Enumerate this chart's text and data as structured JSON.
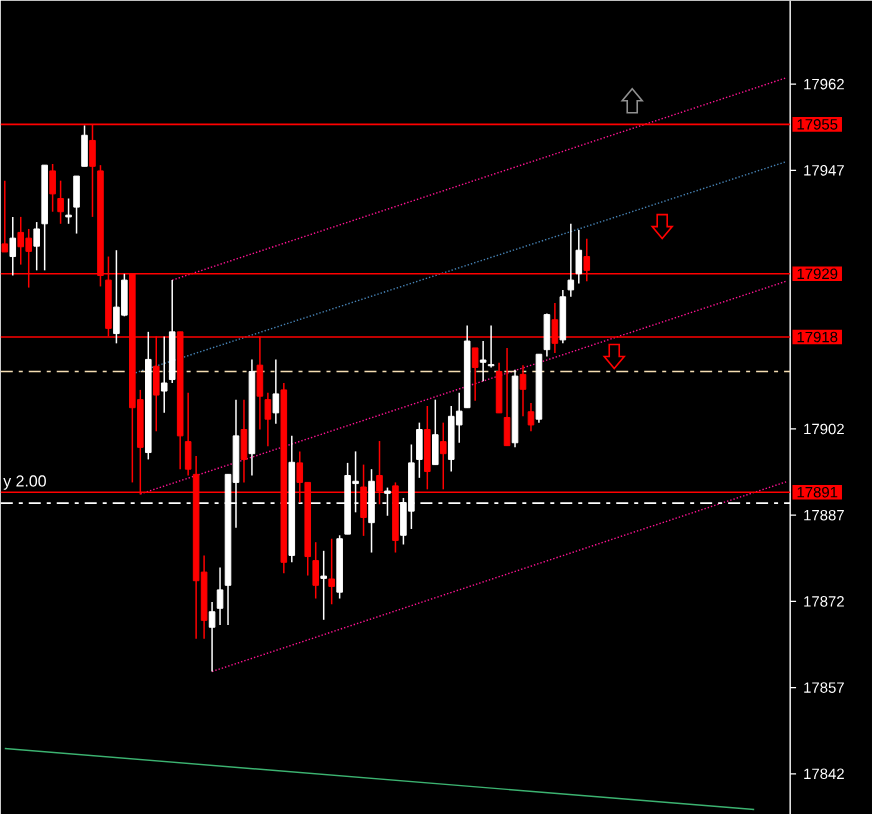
{
  "chart_data": {
    "type": "candlestick",
    "categories": [
      null,
      null,
      null,
      null,
      null,
      null,
      null,
      null,
      null,
      null,
      null,
      null,
      null,
      null,
      null,
      null,
      null,
      null,
      null,
      null,
      null,
      null,
      null,
      null,
      null,
      null,
      null,
      null,
      null,
      null,
      null,
      null,
      null,
      null,
      null,
      null,
      null,
      null,
      null,
      null,
      null,
      null,
      null,
      null,
      null,
      null,
      null,
      null,
      null,
      null,
      null,
      null,
      null,
      null,
      null,
      null,
      null,
      null,
      null,
      null,
      null,
      null,
      null,
      null,
      null,
      null,
      null,
      null,
      null,
      null,
      null,
      null,
      null,
      null,
      null,
      null,
      null,
      null,
      null,
      null,
      null,
      null,
      null,
      null,
      null,
      null,
      null,
      null,
      null,
      null,
      null,
      null,
      null,
      null,
      null,
      null,
      null,
      null,
      null
    ],
    "ohlc": [
      [
        17934.2,
        17945.2,
        17932.8,
        17932.8
      ],
      [
        17932,
        17938.9,
        17928.7,
        17935.2
      ],
      [
        17936.2,
        17938.9,
        17930.6,
        17933.7
      ],
      [
        17935.2,
        17936.8,
        17926.6,
        17932.9
      ],
      [
        17933.8,
        17938,
        17929.6,
        17936.8
      ],
      [
        17937.7,
        17947.9,
        17929.6,
        17947.9
      ],
      [
        17946.9,
        17948.1,
        17939.8,
        17942.9
      ],
      [
        17942.1,
        17945.2,
        17937.7,
        17939.8
      ],
      [
        17938.9,
        17942.1,
        17937.7,
        17939.2
      ],
      [
        17940.6,
        17946,
        17936,
        17946
      ],
      [
        17947.7,
        17954.8,
        17947.7,
        17953.1
      ],
      [
        17952.2,
        17955,
        17938.9,
        17947.7
      ],
      [
        17946.9,
        17947.9,
        17926.8,
        17928.7
      ],
      [
        17927.9,
        17932,
        17918.1,
        17919.5
      ],
      [
        17918.6,
        17933.1,
        17916.9,
        17923.2
      ],
      [
        17921.8,
        17929,
        17921.6,
        17927.9
      ],
      [
        17929,
        17929,
        17892.7,
        17905.7
      ],
      [
        17907.1,
        17908.8,
        17890.6,
        17898.8
      ],
      [
        17897.9,
        17918.9,
        17896.7,
        17914.1
      ],
      [
        17912.9,
        17918.1,
        17901.6,
        17907.9
      ],
      [
        17908.6,
        17918.1,
        17904.8,
        17910
      ],
      [
        17910.6,
        17927.9,
        17910,
        17918.9
      ],
      [
        17918.9,
        17918.9,
        17895,
        17900.8
      ],
      [
        17899.8,
        17908.3,
        17893.9,
        17895
      ],
      [
        17894.1,
        17897.3,
        17865.5,
        17875.6
      ],
      [
        17877.1,
        17880,
        17865.5,
        17868.7
      ],
      [
        17867.5,
        17871.9,
        17859.8,
        17870.2
      ],
      [
        17870.8,
        17877.9,
        17867.9,
        17874
      ],
      [
        17874.8,
        17894.1,
        17867.9,
        17894.1
      ],
      [
        17892.7,
        17907.1,
        17884.8,
        17900.8
      ],
      [
        17901.9,
        17907.1,
        17892.7,
        17896.7
      ],
      [
        17897.7,
        17914.1,
        17893.9,
        17912
      ],
      [
        17913.1,
        17918.1,
        17901.9,
        17907.7
      ],
      [
        17907.1,
        17908.3,
        17899,
        17903.7
      ],
      [
        17904.8,
        17914.1,
        17902.9,
        17908.1
      ],
      [
        17908.8,
        17910,
        17876.9,
        17878.8
      ],
      [
        17880,
        17900.8,
        17878.8,
        17896.2
      ],
      [
        17896.1,
        17898.1,
        17889.2,
        17892.7
      ],
      [
        17892.7,
        17892.7,
        17876.5,
        17879.8
      ],
      [
        17879.1,
        17882.3,
        17872.5,
        17874.8
      ],
      [
        17876,
        17880.8,
        17868.8,
        17876.4
      ],
      [
        17875.9,
        17882.9,
        17871.5,
        17874.6
      ],
      [
        17873.6,
        17883.5,
        17872.5,
        17882.9
      ],
      [
        17883.7,
        17896.1,
        17883.7,
        17893.9
      ],
      [
        17892.5,
        17898.1,
        17887.5,
        17892.9
      ],
      [
        17891.9,
        17895.8,
        17883.4,
        17886.6
      ],
      [
        17885.7,
        17895,
        17880.5,
        17892.9
      ],
      [
        17893.9,
        17899.9,
        17888.9,
        17891.2
      ],
      [
        17890.8,
        17891.8,
        17886.9,
        17891.2
      ],
      [
        17892.1,
        17892.7,
        17880.5,
        17882.6
      ],
      [
        17883.5,
        17890,
        17881.9,
        17889.2
      ],
      [
        17887.7,
        17899.3,
        17884.6,
        17896.1
      ],
      [
        17896.7,
        17903.1,
        17893.5,
        17901.9
      ],
      [
        17901.9,
        17906,
        17891.5,
        17894.6
      ],
      [
        17895.8,
        17907.1,
        17895.8,
        17901
      ],
      [
        17899.8,
        17903.1,
        17891.5,
        17897.7
      ],
      [
        17896.7,
        17906,
        17894.6,
        17904.2
      ],
      [
        17902.7,
        17908.3,
        17899.6,
        17905.1
      ],
      [
        17905.7,
        17920,
        17905.7,
        17917.3
      ],
      [
        17916.1,
        17916.1,
        17906.9,
        17912.7
      ],
      [
        17913.6,
        17917.3,
        17910.3,
        17914
      ],
      [
        17913,
        17920,
        17912.7,
        17913.2
      ],
      [
        17912,
        17913.5,
        17904.8,
        17904.8
      ],
      [
        17904,
        17916.1,
        17899.1,
        17899.1
      ],
      [
        17899.6,
        17912.3,
        17898.8,
        17911.2
      ],
      [
        17911.5,
        17913.1,
        17904.2,
        17908.9
      ],
      [
        17905,
        17906.5,
        17901.6,
        17902.7
      ],
      [
        17903.7,
        17915,
        17903.1,
        17915
      ],
      [
        17915.8,
        17922.1,
        17914.6,
        17921.9
      ],
      [
        17921,
        17923.9,
        17915.2,
        17916.9
      ],
      [
        17917.5,
        17926.2,
        17916.9,
        17925
      ],
      [
        17926.2,
        17937.7,
        17925,
        17927.9
      ],
      [
        17929,
        17936.6,
        17927.3,
        17933.1
      ],
      [
        17932,
        17935.1,
        17927.7,
        17929.6
      ],
      null,
      null,
      null,
      null,
      null,
      null,
      null,
      null,
      null,
      null,
      null,
      null,
      null,
      null,
      null,
      null,
      null,
      null,
      null,
      null,
      null,
      null,
      null,
      null,
      null
    ],
    "colors": [
      "#ff0000",
      "#ffffff",
      "#ff0000",
      "#ff0000",
      "#ffffff",
      "#ffffff",
      "#ff0000",
      "#ff0000",
      "#ffffff",
      "#ffffff",
      "#ffffff",
      "#ff0000",
      "#ff0000",
      "#ff0000",
      "#ffffff",
      "#ffffff",
      "#ff0000",
      "#ff0000",
      "#ffffff",
      "#ff0000",
      "#ffffff",
      "#ffffff",
      "#ff0000",
      "#ff0000",
      "#ff0000",
      "#ff0000",
      "#ffffff",
      "#ffffff",
      "#ffffff",
      "#ffffff",
      "#ff0000",
      "#ffffff",
      "#ff0000",
      "#ff0000",
      "#ffffff",
      "#ff0000",
      "#ffffff",
      "#ff0000",
      "#ff0000",
      "#ff0000",
      "#ffffff",
      "#ff0000",
      "#ffffff",
      "#ffffff",
      "#ffffff",
      "#ff0000",
      "#ffffff",
      "#ff0000",
      "#ffffff",
      "#ff0000",
      "#ffffff",
      "#ffffff",
      "#ffffff",
      "#ff0000",
      "#ffffff",
      "#ff0000",
      "#ffffff",
      "#ffffff",
      "#ffffff",
      "#ff0000",
      "#ffffff",
      "#ffffff",
      "#ff0000",
      "#ff0000",
      "#ffffff",
      "#ff0000",
      "#ff0000",
      "#ffffff",
      "#ffffff",
      "#ff0000",
      "#ffffff",
      "#ffffff",
      "#ffffff",
      "#ff0000",
      null,
      null,
      null,
      null,
      null,
      null,
      null,
      null,
      null,
      null,
      null,
      null,
      null,
      null,
      null,
      null,
      null,
      null,
      null,
      null,
      null,
      null,
      null,
      null,
      null
    ],
    "series": [
      {
        "type": "line",
        "color": "#ff1493",
        "line_style": "dotted",
        "values": [
          null,
          null,
          null,
          null,
          null,
          null,
          null,
          null,
          null,
          null,
          null,
          null,
          null,
          null,
          null,
          null,
          null,
          null,
          null,
          null,
          null,
          17927.9,
          null,
          null,
          null,
          null,
          null,
          null,
          null,
          null,
          null,
          null,
          null,
          null,
          null,
          null,
          null,
          null,
          null,
          null,
          null,
          null,
          null,
          null,
          null,
          null,
          null,
          null,
          null,
          null,
          null,
          null,
          null,
          null,
          null,
          null,
          null,
          null,
          null,
          null,
          null,
          null,
          null,
          null,
          null,
          null,
          null,
          null,
          null,
          null,
          null,
          null,
          null,
          null,
          null,
          null,
          null,
          null,
          null,
          null,
          null,
          null,
          null,
          null,
          null,
          null,
          null,
          null,
          null,
          null,
          null,
          null,
          null,
          null,
          null,
          null,
          null,
          null,
          17963.1
        ]
      },
      {
        "type": "line",
        "color": "#4682b4",
        "line_style": "dotted",
        "values": [
          null,
          null,
          null,
          null,
          null,
          null,
          null,
          null,
          null,
          null,
          null,
          null,
          null,
          null,
          null,
          null,
          17911.6,
          null,
          null,
          null,
          null,
          null,
          null,
          null,
          null,
          null,
          null,
          null,
          null,
          null,
          null,
          null,
          null,
          null,
          null,
          null,
          null,
          null,
          null,
          null,
          null,
          null,
          null,
          null,
          null,
          null,
          null,
          null,
          null,
          null,
          null,
          null,
          null,
          null,
          null,
          null,
          null,
          null,
          null,
          null,
          null,
          null,
          null,
          null,
          null,
          null,
          null,
          null,
          null,
          null,
          null,
          null,
          null,
          null,
          null,
          null,
          null,
          null,
          null,
          null,
          null,
          null,
          null,
          null,
          null,
          null,
          null,
          null,
          null,
          null,
          null,
          null,
          null,
          null,
          null,
          null,
          null,
          null,
          17948.5
        ]
      },
      {
        "type": "line",
        "color": "#ff1493",
        "line_style": "dotted",
        "values": [
          null,
          null,
          null,
          null,
          null,
          null,
          null,
          null,
          null,
          null,
          null,
          null,
          null,
          null,
          null,
          null,
          null,
          17890.7,
          null,
          null,
          null,
          null,
          null,
          null,
          null,
          null,
          null,
          null,
          null,
          null,
          null,
          null,
          null,
          null,
          null,
          null,
          null,
          null,
          null,
          null,
          null,
          null,
          null,
          null,
          null,
          null,
          null,
          null,
          null,
          null,
          null,
          null,
          null,
          null,
          null,
          null,
          null,
          null,
          null,
          null,
          null,
          null,
          null,
          null,
          null,
          null,
          null,
          null,
          null,
          null,
          null,
          null,
          null,
          null,
          null,
          null,
          null,
          null,
          null,
          null,
          null,
          null,
          null,
          null,
          null,
          null,
          null,
          null,
          null,
          null,
          null,
          null,
          null,
          null,
          null,
          null,
          null,
          null,
          17927.7
        ]
      },
      {
        "type": "line",
        "color": "#ff1493",
        "line_style": "dotted",
        "values": [
          null,
          null,
          null,
          null,
          null,
          null,
          null,
          null,
          null,
          null,
          null,
          null,
          null,
          null,
          null,
          null,
          null,
          null,
          null,
          null,
          null,
          null,
          null,
          null,
          null,
          null,
          17859.8,
          null,
          null,
          null,
          null,
          null,
          null,
          null,
          null,
          null,
          null,
          null,
          null,
          null,
          null,
          null,
          null,
          null,
          null,
          null,
          null,
          null,
          null,
          null,
          null,
          null,
          null,
          null,
          null,
          null,
          null,
          null,
          null,
          null,
          null,
          null,
          null,
          null,
          null,
          null,
          null,
          null,
          null,
          null,
          null,
          null,
          null,
          null,
          null,
          null,
          null,
          null,
          null,
          null,
          null,
          null,
          null,
          null,
          null,
          null,
          null,
          null,
          null,
          null,
          null,
          null,
          null,
          null,
          null,
          null,
          null,
          null,
          17892.8
        ]
      },
      {
        "type": "line",
        "color": "#3cb371",
        "line_style": "solid",
        "values": [
          17846.4,
          null,
          null,
          null,
          null,
          null,
          null,
          null,
          null,
          null,
          null,
          null,
          null,
          null,
          null,
          null,
          null,
          null,
          null,
          null,
          null,
          null,
          null,
          null,
          null,
          null,
          null,
          null,
          null,
          null,
          null,
          null,
          null,
          null,
          null,
          null,
          null,
          null,
          null,
          null,
          null,
          null,
          null,
          null,
          null,
          null,
          null,
          null,
          null,
          null,
          null,
          null,
          null,
          null,
          null,
          null,
          null,
          null,
          null,
          null,
          null,
          null,
          null,
          null,
          null,
          null,
          null,
          null,
          null,
          null,
          null,
          null,
          null,
          null,
          null,
          null,
          null,
          null,
          null,
          null,
          null,
          null,
          null,
          null,
          null,
          null,
          null,
          null,
          null,
          null,
          null,
          null,
          null,
          null,
          17835.8,
          null,
          null,
          null,
          null
        ]
      }
    ],
    "ref_lines": [
      {
        "axis": "y",
        "value": 17955,
        "label": "17955",
        "color": "#ff0000",
        "line_style": "solid"
      },
      {
        "axis": "y",
        "value": 17929,
        "label": "17929",
        "color": "#ff0000",
        "line_style": "solid"
      },
      {
        "axis": "y",
        "value": 17918,
        "label": "17918",
        "color": "#ff0000",
        "line_style": "solid"
      },
      {
        "axis": "y",
        "value": 17891,
        "label": "17891",
        "color": "#ff0000",
        "line_style": "solid"
      },
      {
        "axis": "y",
        "value": 17912,
        "color": "#f5deb3",
        "line_style": "dashed"
      },
      {
        "axis": "y",
        "value": 17889.1,
        "color": "#ffffff",
        "line_style": "dashed"
      }
    ],
    "annotations": [
      {
        "text": "y 2.00",
        "y": 17891
      }
    ],
    "ylim": [
      17835,
      17976.5
    ],
    "yticks": [
      17842,
      17857,
      17872,
      17887,
      17902,
      17947,
      17962
    ],
    "tick_labels": "y"
  }
}
